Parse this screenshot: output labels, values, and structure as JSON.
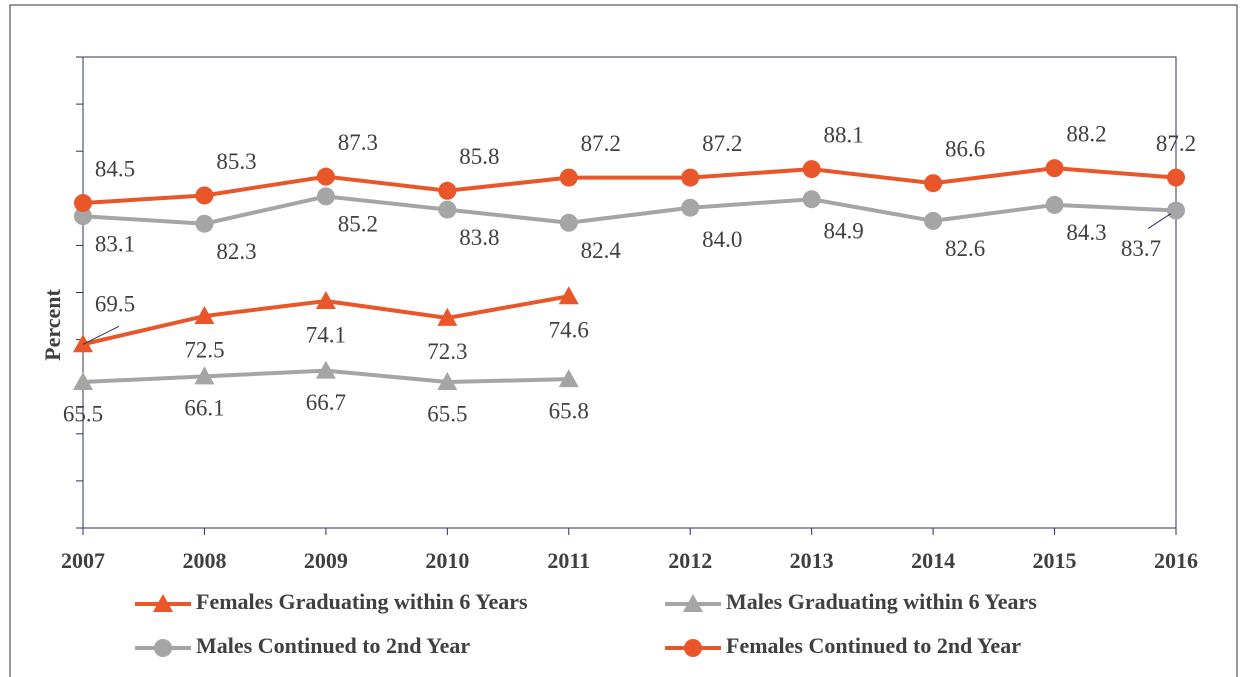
{
  "chart_data": {
    "type": "line",
    "y_label": "Percent",
    "categories": [
      "2007",
      "2008",
      "2009",
      "2010",
      "2011",
      "2012",
      "2013",
      "2014",
      "2015",
      "2016"
    ],
    "ylim": [
      50,
      100
    ],
    "yticks": [
      50,
      55,
      60,
      65,
      70,
      75,
      80,
      85,
      90,
      95,
      100
    ],
    "series": [
      {
        "name": "Females Graduating within 6 Years",
        "color": "#e8562a",
        "marker": "triangle",
        "values": [
          69.5,
          72.5,
          74.1,
          72.3,
          74.6,
          null,
          null,
          null,
          null,
          null
        ],
        "value_labels": [
          "69.5",
          "72.5",
          "74.1",
          "72.3",
          "74.6",
          null,
          null,
          null,
          null,
          null
        ]
      },
      {
        "name": "Males Graduating within 6 Years",
        "color": "#a5a5a5",
        "marker": "triangle",
        "values": [
          65.5,
          66.1,
          66.7,
          65.5,
          65.8,
          null,
          null,
          null,
          null,
          null
        ],
        "value_labels": [
          "65.5",
          "66.1",
          "66.7",
          "65.5",
          "65.8",
          null,
          null,
          null,
          null,
          null
        ]
      },
      {
        "name": "Males Continued to 2nd Year",
        "color": "#a5a5a5",
        "marker": "circle",
        "values": [
          83.1,
          82.3,
          85.2,
          83.8,
          82.4,
          84.0,
          84.9,
          82.6,
          84.3,
          83.7
        ],
        "value_labels": [
          "83.1",
          "82.3",
          "85.2",
          "83.8",
          "82.4",
          "84.0",
          "84.9",
          "82.6",
          "84.3",
          "83.7"
        ]
      },
      {
        "name": "Females Continued to 2nd Year",
        "color": "#e8562a",
        "marker": "circle",
        "values": [
          84.5,
          85.3,
          87.3,
          85.8,
          87.2,
          87.2,
          88.1,
          86.6,
          88.2,
          87.2
        ],
        "value_labels": [
          "84.5",
          "85.3",
          "87.3",
          "85.8",
          "87.2",
          "87.2",
          "88.1",
          "86.6",
          "88.2",
          "87.2"
        ]
      }
    ]
  }
}
